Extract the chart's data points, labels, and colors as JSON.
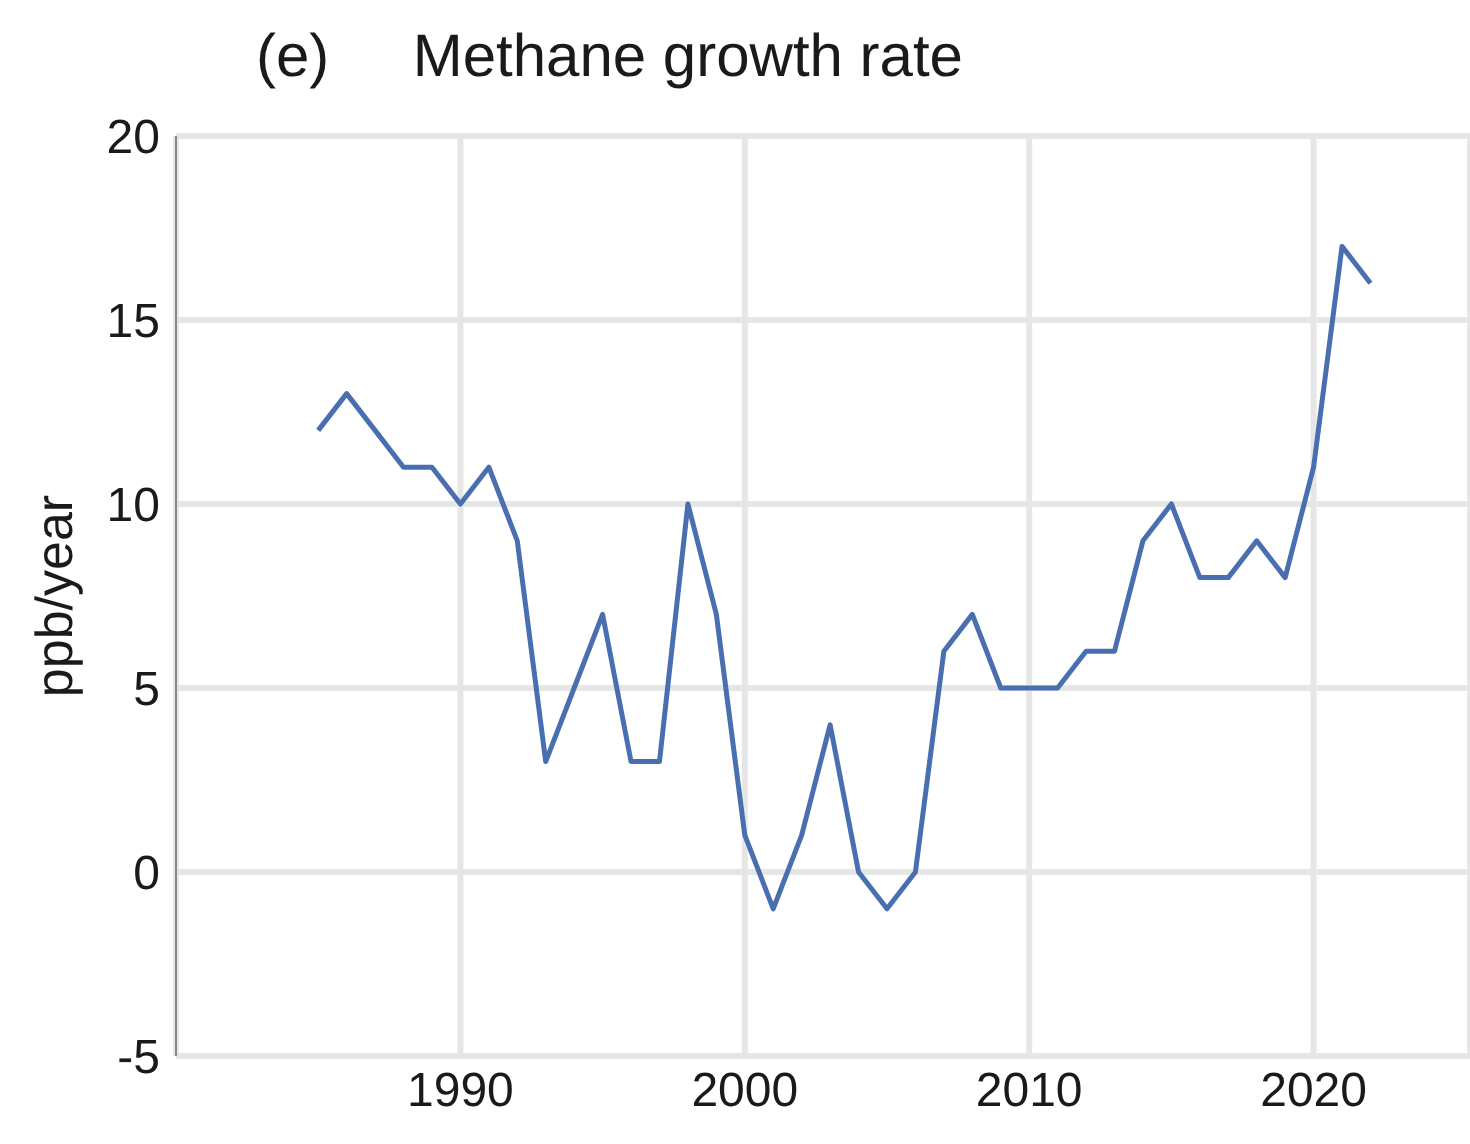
{
  "chart_data": {
    "type": "line",
    "title": "(e)     Methane growth rate",
    "ylabel": "ppb/year",
    "x": [
      1985,
      1986,
      1987,
      1988,
      1989,
      1990,
      1991,
      1992,
      1993,
      1994,
      1995,
      1996,
      1997,
      1998,
      1999,
      2000,
      2001,
      2002,
      2003,
      2004,
      2005,
      2006,
      2007,
      2008,
      2009,
      2010,
      2011,
      2012,
      2013,
      2014,
      2015,
      2016,
      2017,
      2018,
      2019,
      2020,
      2021,
      2022
    ],
    "series": [
      {
        "color": "#4a6fb0",
        "values": [
          12,
          13,
          12,
          11,
          11,
          10,
          11,
          9,
          3,
          5,
          7,
          3,
          3,
          10,
          7,
          1,
          -1,
          1,
          4,
          0,
          -1,
          0,
          6,
          7,
          5,
          5,
          5,
          6,
          6,
          9,
          10,
          8,
          8,
          9,
          8,
          11,
          17,
          16
        ]
      }
    ],
    "xlim": [
      1980,
      2025.5
    ],
    "xticks": [
      1990,
      2000,
      2010,
      2020
    ],
    "ylim": [
      -5,
      20
    ],
    "yticks": [
      -5,
      0,
      5,
      10,
      15,
      20
    ],
    "grid": true,
    "legend": false,
    "marker": "none",
    "line_style": "solid"
  }
}
